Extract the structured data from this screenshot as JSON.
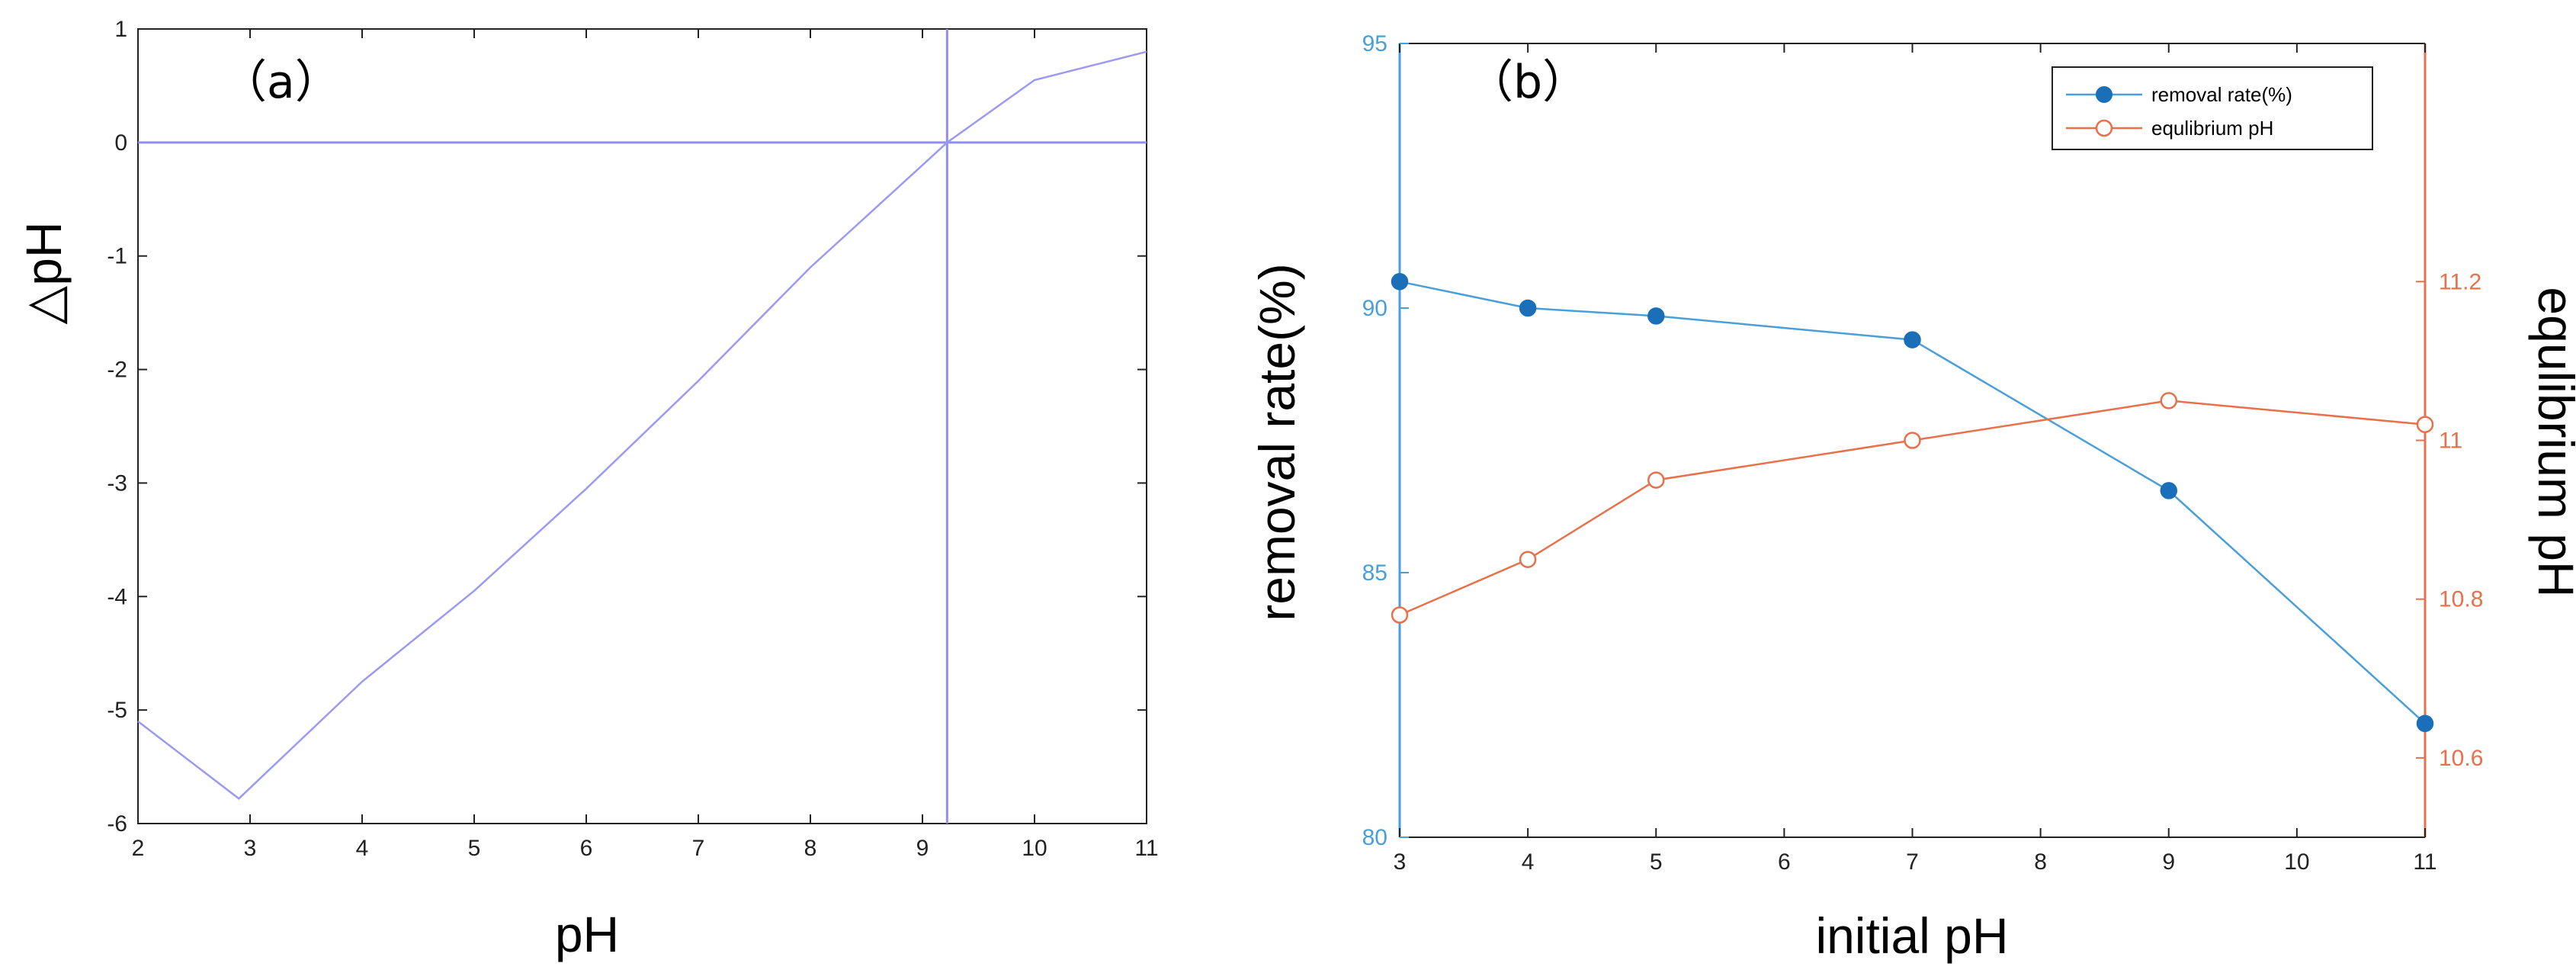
{
  "chart_data": [
    {
      "type": "line",
      "panel_label": "（a）",
      "xlabel": "pH",
      "ylabel": "△pH",
      "xlim": [
        2,
        11
      ],
      "ylim": [
        -6,
        1
      ],
      "xticks": [
        "2",
        "3",
        "4",
        "5",
        "6",
        "7",
        "8",
        "9",
        "10",
        "11"
      ],
      "yticks": [
        "1",
        "0",
        "-1",
        "-2",
        "-3",
        "-4",
        "-5",
        "-6"
      ],
      "reference_lines": {
        "horizontal_y": 0,
        "vertical_x": 9.22
      },
      "series": [
        {
          "color": "#9a9af5",
          "x": [
            2,
            2.9,
            4,
            5,
            6,
            7,
            8,
            9,
            9.22,
            10,
            11
          ],
          "y": [
            -5.1,
            -5.78,
            -4.75,
            -3.95,
            -3.05,
            -2.1,
            -1.1,
            -0.2,
            0,
            0.55,
            0.8
          ]
        }
      ],
      "grid": false
    },
    {
      "type": "line",
      "panel_label": "（b）",
      "xlabel": "initial pH",
      "ylabel_left": "removal rate(%)",
      "ylabel_right": "equlibrium pH",
      "xlim": [
        3,
        11
      ],
      "ylim_left": [
        80,
        95
      ],
      "ylim_right": [
        10.5,
        11.5
      ],
      "xticks": [
        "3",
        "4",
        "5",
        "6",
        "7",
        "8",
        "9",
        "10",
        "11"
      ],
      "yticks_left": [
        "95",
        "90",
        "85",
        "80"
      ],
      "yticks_right": [
        "11.2",
        "11",
        "10.8",
        "10.6"
      ],
      "legend_position": "top-right",
      "series": [
        {
          "name": "removal rate(%)",
          "axis": "left",
          "color": "#4a9fd8",
          "marker": "filled-circle",
          "x": [
            3,
            4,
            5,
            7,
            9,
            11
          ],
          "y": [
            90.5,
            90.0,
            89.85,
            89.4,
            86.55,
            82.15
          ]
        },
        {
          "name": "equlibrium pH",
          "axis": "right",
          "color": "#e8704a",
          "marker": "open-circle",
          "x": [
            3,
            4,
            5,
            7,
            9,
            11
          ],
          "y": [
            10.78,
            10.85,
            10.95,
            11.0,
            11.05,
            11.02
          ]
        }
      ],
      "grid": false
    }
  ]
}
